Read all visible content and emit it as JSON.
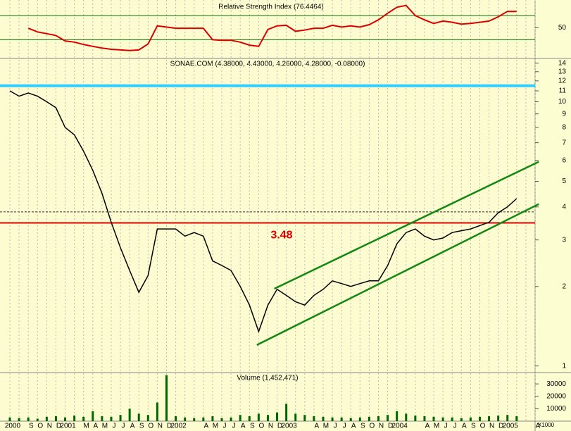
{
  "chart_data": [
    {
      "type": "line",
      "title": "Relative Strength Index (76.4464)",
      "ylim": [
        0,
        96
      ],
      "yticks": [
        50
      ],
      "reference_lines": [
        70,
        30
      ],
      "reference_color": "#117711",
      "color": "#dd0000",
      "values": [
        null,
        null,
        49,
        43,
        40,
        37,
        28,
        26,
        22,
        19,
        16,
        14,
        13,
        12,
        13,
        23,
        53,
        51,
        49,
        49,
        49,
        49,
        30,
        29,
        29,
        26,
        21,
        19,
        47,
        53,
        54,
        44,
        46,
        49,
        49,
        54,
        51,
        53,
        51,
        55,
        63,
        74,
        84,
        87,
        70,
        63,
        57,
        61,
        59,
        56,
        57,
        59,
        61,
        68,
        77,
        77,
        null,
        null
      ]
    },
    {
      "type": "line",
      "title": "SONAE.COM (4.38000, 4.43000, 4.26000, 4.28000, -0.08000)",
      "log_scale": true,
      "ylim": [
        0.95,
        14.5
      ],
      "yticks": [
        1,
        2,
        3,
        4,
        5,
        6,
        7,
        8,
        9,
        10,
        11,
        12,
        13,
        14
      ],
      "color": "#000000",
      "values": [
        11,
        10.5,
        10.8,
        10.5,
        10,
        9.5,
        8,
        7.5,
        6.5,
        5.5,
        4.5,
        3.5,
        2.8,
        2.3,
        1.9,
        2.2,
        3.3,
        3.3,
        3.3,
        3.1,
        3.2,
        3.1,
        2.5,
        2.4,
        2.3,
        2.0,
        1.7,
        1.35,
        1.7,
        1.95,
        1.85,
        1.75,
        1.7,
        1.85,
        1.95,
        2.1,
        2.05,
        2.0,
        2.05,
        2.1,
        2.1,
        2.4,
        2.9,
        3.2,
        3.3,
        3.1,
        3.0,
        3.05,
        3.2,
        3.25,
        3.3,
        3.4,
        3.5,
        3.8,
        4.0,
        4.3,
        null,
        null
      ],
      "levels": [
        {
          "value": 11.5,
          "color": "#33ccff"
        },
        {
          "value": 3.48,
          "color": "#dd0000"
        },
        {
          "value": 3.83,
          "color": "#333333"
        }
      ],
      "annotation": {
        "text": "3.48",
        "color": "#dd0000"
      },
      "trendlines": [
        {
          "x": [
            28.7,
            57.4
          ],
          "values": [
            1.96,
            5.93
          ],
          "color": "#118811"
        },
        {
          "x": [
            26.8,
            57.4
          ],
          "values": [
            1.2,
            4.1
          ],
          "color": "#118811"
        }
      ]
    },
    {
      "type": "bar",
      "title": "Volume (1,452,471)",
      "unit_label": "X1000",
      "ylim": [
        0,
        38600
      ],
      "yticks": [
        10000,
        20000,
        30000
      ],
      "color": "#006600",
      "categories": [
        "2000",
        null,
        "S",
        "O",
        "N",
        "D",
        "2001",
        null,
        "M",
        "A",
        "M",
        "J",
        "J",
        "A",
        "S",
        "O",
        "N",
        "D",
        "2002",
        null,
        null,
        "A",
        "M",
        "J",
        "J",
        "A",
        "S",
        "O",
        "N",
        "D",
        "2003",
        null,
        null,
        "A",
        "M",
        "J",
        "J",
        "A",
        "S",
        "O",
        "N",
        "D",
        "2004",
        null,
        null,
        "A",
        "M",
        "J",
        "J",
        "A",
        "S",
        "O",
        "N",
        "D",
        "2005",
        null,
        null,
        "A"
      ],
      "values": [
        3000,
        2500,
        3000,
        2000,
        3500,
        4000,
        3000,
        4500,
        3500,
        8000,
        4000,
        3500,
        5000,
        10000,
        6000,
        5000,
        15000,
        37000,
        4000,
        3000,
        2500,
        3000,
        4000,
        2500,
        3000,
        5000,
        4000,
        6000,
        5000,
        7000,
        14000,
        6000,
        5000,
        4000,
        3500,
        3000,
        3000,
        2500,
        3000,
        3500,
        4000,
        5000,
        8000,
        6000,
        4500,
        4000,
        3500,
        3000,
        3000,
        2500,
        3000,
        3500,
        4000,
        4500,
        5000,
        4000,
        null,
        null
      ]
    }
  ]
}
